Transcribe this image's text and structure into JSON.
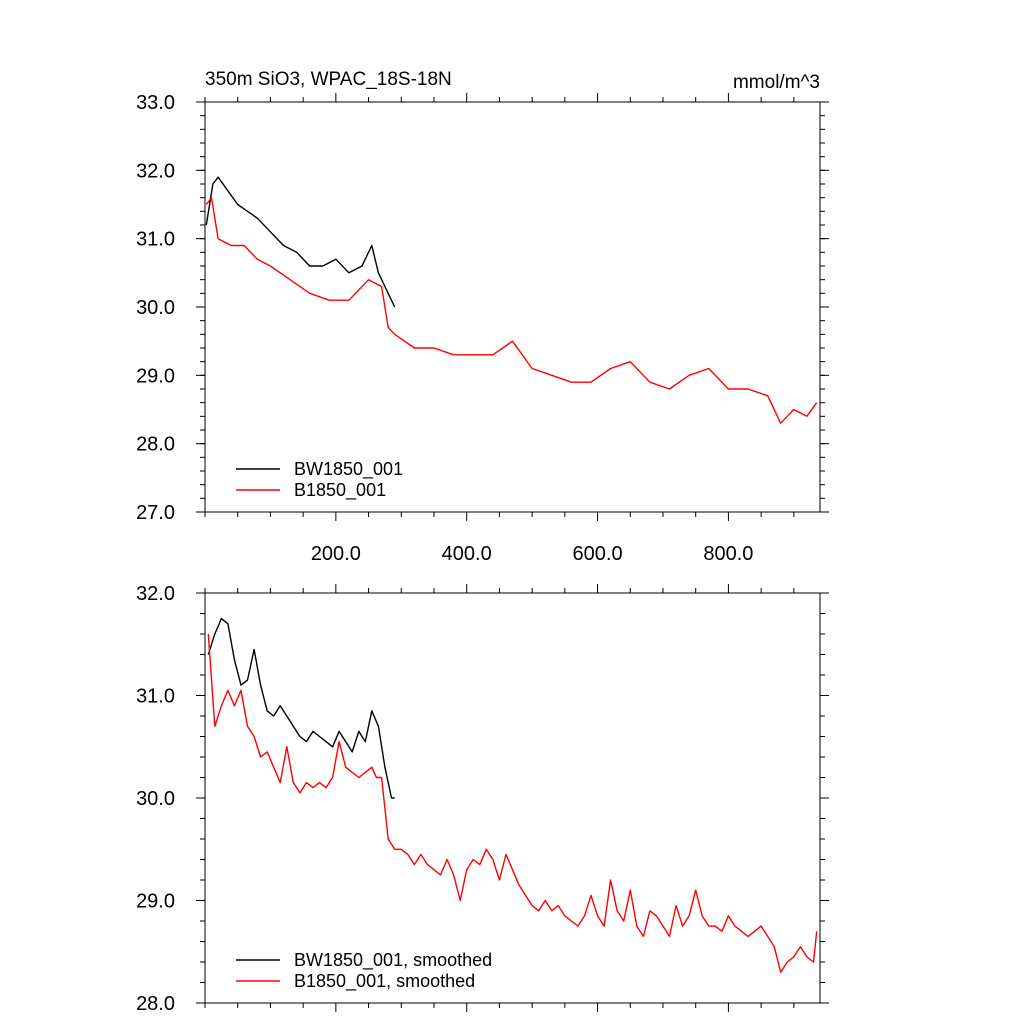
{
  "title_left": "350m SiO3, WPAC_18S-18N",
  "title_right": "mmol/m^3",
  "colors": {
    "bw": "#000000",
    "b": "#ff0000"
  },
  "chart_data": [
    {
      "type": "line",
      "xlim": [
        0,
        940
      ],
      "ylim": [
        27.0,
        33.0
      ],
      "x_ticks": [
        "200.0",
        "400.0",
        "600.0",
        "800.0"
      ],
      "y_ticks": [
        "27.0",
        "28.0",
        "29.0",
        "30.0",
        "31.0",
        "32.0",
        "33.0"
      ],
      "legend_position": "bottom-left",
      "series": [
        {
          "name": "BW1850_001",
          "color": "#000000",
          "x": [
            2,
            12,
            20,
            35,
            50,
            65,
            80,
            100,
            120,
            140,
            160,
            180,
            200,
            220,
            240,
            255,
            265,
            275,
            290
          ],
          "y": [
            31.2,
            31.8,
            31.9,
            31.7,
            31.5,
            31.4,
            31.3,
            31.1,
            30.9,
            30.8,
            30.6,
            30.6,
            30.7,
            30.5,
            30.6,
            30.9,
            30.5,
            30.3,
            30.0
          ]
        },
        {
          "name": "B1850_001",
          "color": "#ff0000",
          "x": [
            2,
            10,
            20,
            40,
            60,
            80,
            100,
            130,
            160,
            190,
            220,
            250,
            270,
            280,
            290,
            320,
            350,
            380,
            410,
            440,
            470,
            500,
            530,
            560,
            590,
            620,
            650,
            680,
            710,
            740,
            770,
            800,
            830,
            860,
            880,
            900,
            920,
            935
          ],
          "y": [
            31.5,
            31.6,
            31.0,
            30.9,
            30.9,
            30.7,
            30.6,
            30.4,
            30.2,
            30.1,
            30.1,
            30.4,
            30.3,
            29.7,
            29.6,
            29.4,
            29.4,
            29.3,
            29.3,
            29.3,
            29.5,
            29.1,
            29.0,
            28.9,
            28.9,
            29.1,
            29.2,
            28.9,
            28.8,
            29.0,
            29.1,
            28.8,
            28.8,
            28.7,
            28.3,
            28.5,
            28.4,
            28.6
          ]
        }
      ]
    },
    {
      "type": "line",
      "xlim": [
        0,
        940
      ],
      "ylim": [
        28.0,
        32.0
      ],
      "y_ticks": [
        "28.0",
        "29.0",
        "30.0",
        "31.0",
        "32.0"
      ],
      "legend_position": "bottom-left",
      "series": [
        {
          "name": "BW1850_001, smoothed",
          "color": "#000000",
          "x": [
            5,
            15,
            25,
            35,
            45,
            55,
            65,
            75,
            85,
            95,
            105,
            115,
            125,
            135,
            145,
            155,
            165,
            175,
            185,
            195,
            205,
            215,
            225,
            235,
            245,
            255,
            265,
            275,
            285,
            290
          ],
          "y": [
            31.4,
            31.6,
            31.75,
            31.7,
            31.35,
            31.1,
            31.15,
            31.45,
            31.1,
            30.85,
            30.8,
            30.9,
            30.8,
            30.7,
            30.6,
            30.55,
            30.65,
            30.6,
            30.55,
            30.5,
            30.65,
            30.55,
            30.45,
            30.65,
            30.55,
            30.85,
            30.7,
            30.3,
            30.0,
            30.0
          ]
        },
        {
          "name": "B1850_001, smoothed",
          "color": "#ff0000",
          "x": [
            5,
            15,
            25,
            35,
            45,
            55,
            65,
            75,
            85,
            95,
            105,
            115,
            125,
            135,
            145,
            155,
            165,
            175,
            185,
            195,
            205,
            215,
            225,
            235,
            245,
            255,
            262,
            270,
            275,
            280,
            290,
            300,
            310,
            320,
            330,
            340,
            350,
            360,
            370,
            380,
            390,
            400,
            410,
            420,
            430,
            440,
            450,
            460,
            470,
            480,
            490,
            500,
            510,
            520,
            530,
            540,
            550,
            560,
            570,
            580,
            590,
            600,
            610,
            620,
            630,
            640,
            650,
            660,
            670,
            680,
            690,
            700,
            710,
            720,
            730,
            740,
            750,
            760,
            770,
            780,
            790,
            800,
            810,
            820,
            830,
            840,
            850,
            860,
            870,
            880,
            890,
            900,
            910,
            920,
            930,
            935
          ],
          "y": [
            31.6,
            30.7,
            30.9,
            31.05,
            30.9,
            31.05,
            30.7,
            30.6,
            30.4,
            30.45,
            30.3,
            30.15,
            30.5,
            30.15,
            30.05,
            30.15,
            30.1,
            30.15,
            30.1,
            30.2,
            30.55,
            30.3,
            30.25,
            30.2,
            30.25,
            30.3,
            30.2,
            30.2,
            29.9,
            29.6,
            29.5,
            29.5,
            29.45,
            29.35,
            29.45,
            29.35,
            29.3,
            29.25,
            29.4,
            29.25,
            29.0,
            29.3,
            29.4,
            29.35,
            29.5,
            29.4,
            29.2,
            29.45,
            29.3,
            29.15,
            29.05,
            28.95,
            28.9,
            29.0,
            28.9,
            28.95,
            28.85,
            28.8,
            28.75,
            28.85,
            29.05,
            28.85,
            28.75,
            29.2,
            28.9,
            28.8,
            29.1,
            28.75,
            28.65,
            28.9,
            28.85,
            28.75,
            28.65,
            28.95,
            28.75,
            28.85,
            29.1,
            28.85,
            28.75,
            28.75,
            28.7,
            28.85,
            28.75,
            28.7,
            28.65,
            28.7,
            28.75,
            28.65,
            28.55,
            28.3,
            28.4,
            28.45,
            28.55,
            28.45,
            28.4,
            28.7
          ]
        }
      ]
    }
  ]
}
